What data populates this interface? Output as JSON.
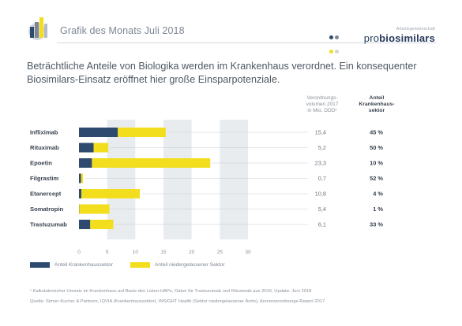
{
  "header": {
    "title": "Grafik des Monats Juli 2018",
    "brand_tag": "Arbeitsgemeinschaft",
    "brand_pro": "pro",
    "brand_name": "biosimilars"
  },
  "headline": "Beträchtliche Anteile von Biologika werden im Krankenhaus verordnet. Ein konsequenter Biosimilars-Einsatz eröffnet hier große Einsparpotenziale.",
  "columns": {
    "volume_header": [
      "Verordnungs-",
      "volumen 2017",
      "in Mio. DDD¹"
    ],
    "share_header": [
      "Anteil",
      "Krankenhaus-",
      "sektor"
    ]
  },
  "colors": {
    "hospital": "#2e4a6e",
    "outpatient": "#f2de1c",
    "grid_band": "#e9ecef"
  },
  "chart_data": {
    "type": "bar",
    "orientation": "horizontal",
    "stacked": true,
    "categories": [
      "Infliximab",
      "Rituximab",
      "Epoetin",
      "Filgrastim",
      "Etanercept",
      "Somatropin",
      "Trastuzumab"
    ],
    "series": [
      {
        "name": "Anteil Krankenhaussektor",
        "values": [
          6.9,
          2.6,
          2.3,
          0.36,
          0.43,
          0.05,
          2.0
        ]
      },
      {
        "name": "Anteil niedergelassener Sektor",
        "values": [
          8.5,
          2.6,
          21.0,
          0.34,
          10.37,
          5.35,
          4.1
        ]
      }
    ],
    "totals": [
      "15,4",
      "5,2",
      "23,3",
      "0,7",
      "10,8",
      "5,4",
      "6,1"
    ],
    "hospital_share": [
      "45 %",
      "50 %",
      "10 %",
      "52 %",
      "4 %",
      "1 %",
      "33 %"
    ],
    "xlim": [
      0,
      30
    ],
    "xticks": [
      "0",
      "5",
      "10",
      "15",
      "20",
      "25",
      "30"
    ],
    "grid": "alternating vertical bands",
    "legend": "bottom"
  },
  "footnotes": [
    "¹ Kalkulatorischer Umsatz im Krankenhaus auf Basis des Listen-HAPs, Daten für Trastuzumab und Rituximab aus 2016, Update: Juni 2018",
    "Quelle: Simon-Kucher & Partners, IQVIA (Krankenhaussektor), INSIGHT Health (Sektor niedergelassener Ärzte), Arzneiverordnungs-Report 2017"
  ]
}
